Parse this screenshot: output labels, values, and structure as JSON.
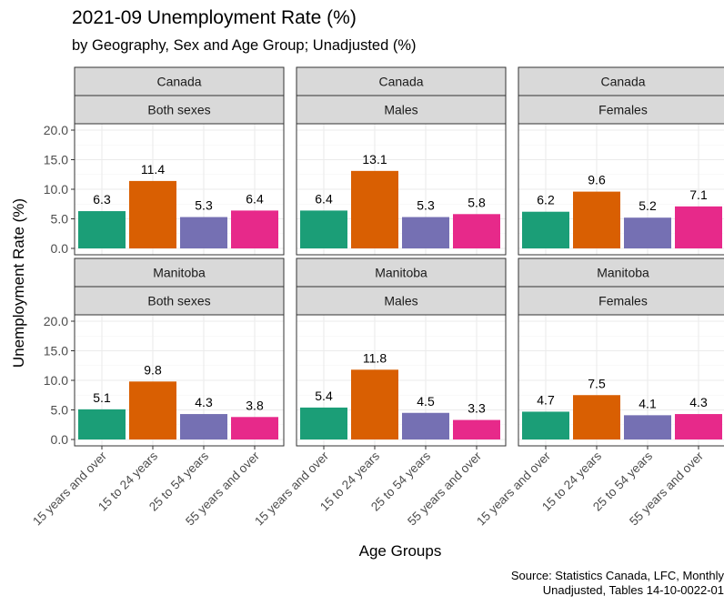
{
  "title": "2021-09 Unemployment Rate (%)",
  "subtitle": "by Geography, Sex and Age Group; Unadjusted (%)",
  "caption": {
    "line1": "Source: Statistics Canada, LFC, Monthly",
    "line2": "Unadjusted, Tables 14-10-0022-01"
  },
  "colors": {
    "15 years and over": "#1b9e77",
    "15 to 24 years": "#d95f02",
    "25 to 54 years": "#7570b3",
    "55 years and over": "#e7298a",
    "strip_fill": "#d9d9d9",
    "panel_border": "#333333",
    "grid": "#ebebeb"
  },
  "chart_data": {
    "type": "bar",
    "categories": [
      "15 years and over",
      "15 to 24 years",
      "25 to 54 years",
      "55 years and over"
    ],
    "xlabel": "Age Groups",
    "ylabel": "Unemployment Rate (%)",
    "ylim": [
      0,
      20
    ],
    "yticks": [
      "0.0",
      "5.0",
      "10.0",
      "15.0",
      "20.0"
    ],
    "grid": true,
    "panels": [
      {
        "geography": "Canada",
        "sex": "Both sexes",
        "values": [
          6.3,
          11.4,
          5.3,
          6.4
        ],
        "labels": [
          "6.3",
          "11.4",
          "5.3",
          "6.4"
        ]
      },
      {
        "geography": "Canada",
        "sex": "Males",
        "values": [
          6.4,
          13.1,
          5.3,
          5.8
        ],
        "labels": [
          "6.4",
          "13.1",
          "5.3",
          "5.8"
        ]
      },
      {
        "geography": "Canada",
        "sex": "Females",
        "values": [
          6.2,
          9.6,
          5.2,
          7.1
        ],
        "labels": [
          "6.2",
          "9.6",
          "5.2",
          "7.1"
        ]
      },
      {
        "geography": "Manitoba",
        "sex": "Both sexes",
        "values": [
          5.1,
          9.8,
          4.3,
          3.8
        ],
        "labels": [
          "5.1",
          "9.8",
          "4.3",
          "3.8"
        ]
      },
      {
        "geography": "Manitoba",
        "sex": "Males",
        "values": [
          5.4,
          11.8,
          4.5,
          3.3
        ],
        "labels": [
          "5.4",
          "11.8",
          "4.5",
          "3.3"
        ]
      },
      {
        "geography": "Manitoba",
        "sex": "Females",
        "values": [
          4.7,
          7.5,
          4.1,
          4.3
        ],
        "labels": [
          "4.7",
          "7.5",
          "4.1",
          "4.3"
        ]
      }
    ]
  }
}
